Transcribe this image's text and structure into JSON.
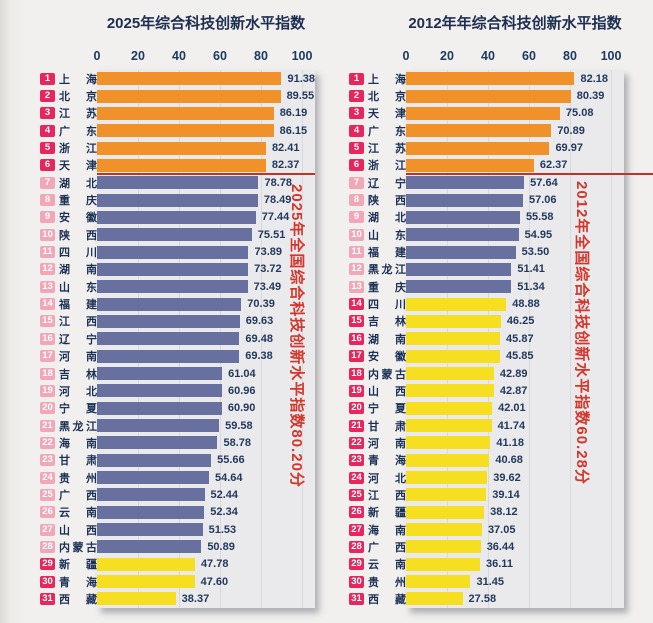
{
  "colors": {
    "bar_top_orange": "#F0912A",
    "bar_mid_blue": "#67709F",
    "bar_low_yellow": "#F6DE20",
    "badge_strong_pink": "#E8265E",
    "badge_light_pink": "#F2A7B8",
    "benchmark_line_red": "#C33227",
    "benchmark_text_red": "#D3362A"
  },
  "chart_data": [
    {
      "type": "bar",
      "orientation": "horizontal",
      "title": "2025年综合科技创新水平指数",
      "xlim": [
        0,
        100
      ],
      "axis_ticks": [
        0,
        20,
        40,
        60,
        80,
        100
      ],
      "benchmark_label": "2025年全国综合科技创新水平指数80.20分",
      "divider_after_rank": 6,
      "categories": [
        "上 海",
        "北 京",
        "江 苏",
        "广 东",
        "浙 江",
        "天 津",
        "湖 北",
        "重 庆",
        "安 徽",
        "陕 西",
        "四 川",
        "湖 南",
        "山 东",
        "福 建",
        "江 西",
        "辽 宁",
        "河 南",
        "吉 林",
        "河 北",
        "宁 夏",
        "黑龙江",
        "海 南",
        "甘 肃",
        "贵 州",
        "广 西",
        "云 南",
        "山 西",
        "内蒙古",
        "新 疆",
        "青 海",
        "西 藏"
      ],
      "values": [
        "91.38",
        "89.55",
        "86.19",
        "86.15",
        "82.41",
        "82.37",
        "78.78",
        "78.49",
        "77.44",
        "75.51",
        "73.89",
        "73.72",
        "73.49",
        "70.39",
        "69.63",
        "69.48",
        "69.38",
        "61.04",
        "60.96",
        "60.90",
        "59.58",
        "58.78",
        "55.66",
        "54.64",
        "52.44",
        "52.34",
        "51.53",
        "50.89",
        "47.78",
        "47.60",
        "38.37"
      ],
      "tiers": [
        "top",
        "top",
        "top",
        "top",
        "top",
        "top",
        "mid",
        "mid",
        "mid",
        "mid",
        "mid",
        "mid",
        "mid",
        "mid",
        "mid",
        "mid",
        "mid",
        "mid",
        "mid",
        "mid",
        "mid",
        "mid",
        "mid",
        "mid",
        "mid",
        "mid",
        "mid",
        "mid",
        "low",
        "low",
        "low"
      ]
    },
    {
      "type": "bar",
      "orientation": "horizontal",
      "title": "2012年年综合科技创新水平指数",
      "xlim": [
        0,
        100
      ],
      "axis_ticks": [
        0,
        20,
        40,
        60,
        80,
        100
      ],
      "benchmark_label": "2012年全国综合科技创新水平指数60.28分",
      "divider_after_rank": 6,
      "categories": [
        "上 海",
        "北 京",
        "天 津",
        "广 东",
        "江 苏",
        "浙 江",
        "辽 宁",
        "陕 西",
        "湖 北",
        "山 东",
        "福 建",
        "黑龙江",
        "重 庆",
        "四 川",
        "吉 林",
        "湖 南",
        "安 徽",
        "内蒙古",
        "山 西",
        "宁 夏",
        "甘 肃",
        "河 南",
        "青 海",
        "河 北",
        "江 西",
        "新 疆",
        "海 南",
        "广 西",
        "云 南",
        "贵 州",
        "西 藏"
      ],
      "values": [
        "82.18",
        "80.39",
        "75.08",
        "70.89",
        "69.97",
        "62.37",
        "57.64",
        "57.06",
        "55.58",
        "54.95",
        "53.50",
        "51.41",
        "51.34",
        "48.88",
        "46.25",
        "45.87",
        "45.85",
        "42.89",
        "42.87",
        "42.01",
        "41.74",
        "41.18",
        "40.68",
        "39.62",
        "39.14",
        "38.12",
        "37.05",
        "36.44",
        "36.11",
        "31.45",
        "27.58"
      ],
      "tiers": [
        "top",
        "top",
        "top",
        "top",
        "top",
        "top",
        "mid",
        "mid",
        "mid",
        "mid",
        "mid",
        "mid",
        "mid",
        "low",
        "low",
        "low",
        "low",
        "low",
        "low",
        "low",
        "low",
        "low",
        "low",
        "low",
        "low",
        "low",
        "low",
        "low",
        "low",
        "low",
        "low"
      ]
    }
  ]
}
